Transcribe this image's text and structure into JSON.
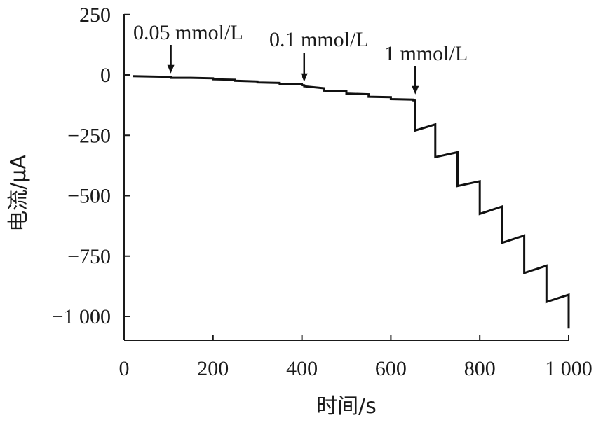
{
  "chart_data": {
    "type": "line",
    "xlabel": "时间/s",
    "ylabel": "电流/μA",
    "xlim": [
      0,
      1000
    ],
    "ylim": [
      -1100,
      250
    ],
    "x_ticks": [
      0,
      200,
      400,
      600,
      800,
      1000
    ],
    "x_tick_labels": [
      "0",
      "200",
      "400",
      "600",
      "800",
      "1 000"
    ],
    "y_ticks": [
      250,
      0,
      -250,
      -500,
      -750,
      -1000
    ],
    "y_tick_labels": [
      "250",
      "0",
      "−250",
      "−500",
      "−750",
      "−1 000"
    ],
    "grid": false,
    "annotations": [
      {
        "text": "0.05 mmol/L",
        "x": 105,
        "y": -5
      },
      {
        "text": "0.1 mmol/L",
        "x": 405,
        "y": -40
      },
      {
        "text": "1 mmol/L",
        "x": 655,
        "y": -92
      }
    ],
    "series": [
      {
        "x": [
          20,
          105,
          105,
          150,
          200,
          200,
          250,
          250,
          300,
          300,
          350,
          350,
          400,
          400,
          405,
          405,
          450,
          450,
          500,
          500,
          550,
          550,
          600,
          600,
          650,
          650,
          655,
          655,
          700,
          700,
          750,
          750,
          800,
          800,
          850,
          850,
          900,
          900,
          950,
          950,
          1000,
          1000
        ],
        "y": [
          -5,
          -8,
          -12,
          -12,
          -14,
          -18,
          -20,
          -24,
          -27,
          -31,
          -33,
          -37,
          -39,
          -42,
          -43,
          -47,
          -55,
          -65,
          -68,
          -77,
          -80,
          -90,
          -92,
          -100,
          -102,
          -105,
          -106,
          -230,
          -205,
          -340,
          -320,
          -460,
          -440,
          -575,
          -545,
          -695,
          -665,
          -820,
          -790,
          -940,
          -910,
          -1050
        ]
      }
    ]
  }
}
